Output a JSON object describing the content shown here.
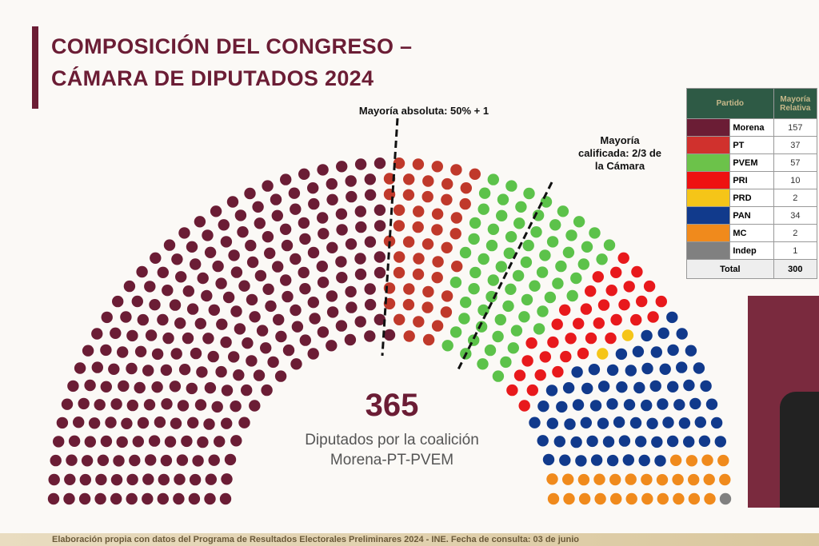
{
  "title_line1": "COMPOSICIÓN DEL CONGRESO –",
  "title_line2": "CÁMARA DE DIPUTADOS 2024",
  "annotations": {
    "absolute": "Mayoría absoluta: 50% + 1",
    "qualified": "Mayoría calificada: 2/3 de la Cámara"
  },
  "center": {
    "number": "365",
    "caption_line1": "Diputados por la coalición",
    "caption_line2": "Morena-PT-PVEM"
  },
  "chart_data": {
    "type": "parliament",
    "total_seats": 500,
    "series": [
      {
        "name": "Morena",
        "seats": 248,
        "color": "#6b1d35"
      },
      {
        "name": "PT",
        "seats": 47,
        "color": "#c0392b"
      },
      {
        "name": "PVEM",
        "seats": 70,
        "color": "#5cc24a"
      },
      {
        "name": "PRI",
        "seats": 35,
        "color": "#e8191c"
      },
      {
        "name": "PRD",
        "seats": 2,
        "color": "#f5c518"
      },
      {
        "name": "PAN",
        "seats": 70,
        "color": "#113a8c"
      },
      {
        "name": "MC",
        "seats": 27,
        "color": "#f08a1c"
      },
      {
        "name": "Indep",
        "seats": 1,
        "color": "#808080"
      }
    ]
  },
  "table": {
    "headers": [
      "Partido",
      "Mayoría Relativa"
    ],
    "rows": [
      {
        "party": "Morena",
        "value": "157",
        "color": "#6b1d35"
      },
      {
        "party": "PT",
        "value": "37",
        "color": "#d0312d"
      },
      {
        "party": "PVEM",
        "value": "57",
        "color": "#6cc24a"
      },
      {
        "party": "PRI",
        "value": "10",
        "color": "#ee1111"
      },
      {
        "party": "PRD",
        "value": "2",
        "color": "#f5c518"
      },
      {
        "party": "PAN",
        "value": "34",
        "color": "#113a8c"
      },
      {
        "party": "MC",
        "value": "2",
        "color": "#f08a1c"
      },
      {
        "party": "Indep",
        "value": "1",
        "color": "#808080"
      }
    ],
    "total_label": "Total",
    "total_value": "300"
  },
  "footer": "Elaboración propia con datos del Programa de Resultados Electorales Preliminares 2024 - INE. Fecha de consulta: 03 de junio"
}
